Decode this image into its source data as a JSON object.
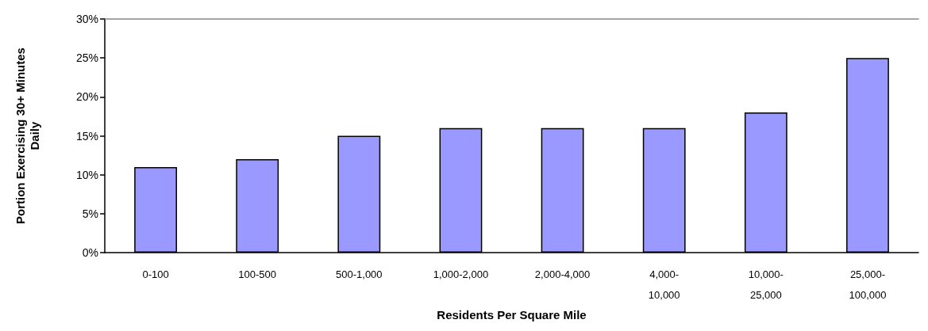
{
  "chart_data": {
    "type": "bar",
    "xlabel": "Residents Per Square Mile",
    "ylabel": "Portion Exercising 30+ Minutes\nDaily",
    "categories": [
      "0-100",
      "100-500",
      "500-1,000",
      "1,000-2,000",
      "2,000-4,000",
      "4,000-10,000",
      "10,000-25,000",
      "25,000-100,000"
    ],
    "values": [
      11,
      12,
      15,
      16,
      16,
      16,
      18,
      25
    ],
    "color": "#9999ff",
    "ylim": [
      0,
      30
    ],
    "yticks": [
      {
        "value": 0,
        "label": "0%"
      },
      {
        "value": 5,
        "label": "5%"
      },
      {
        "value": 10,
        "label": "10%"
      },
      {
        "value": 15,
        "label": "15%"
      },
      {
        "value": 20,
        "label": "20%"
      },
      {
        "value": 25,
        "label": "25%"
      },
      {
        "value": 30,
        "label": "30%"
      }
    ],
    "grid": false
  }
}
